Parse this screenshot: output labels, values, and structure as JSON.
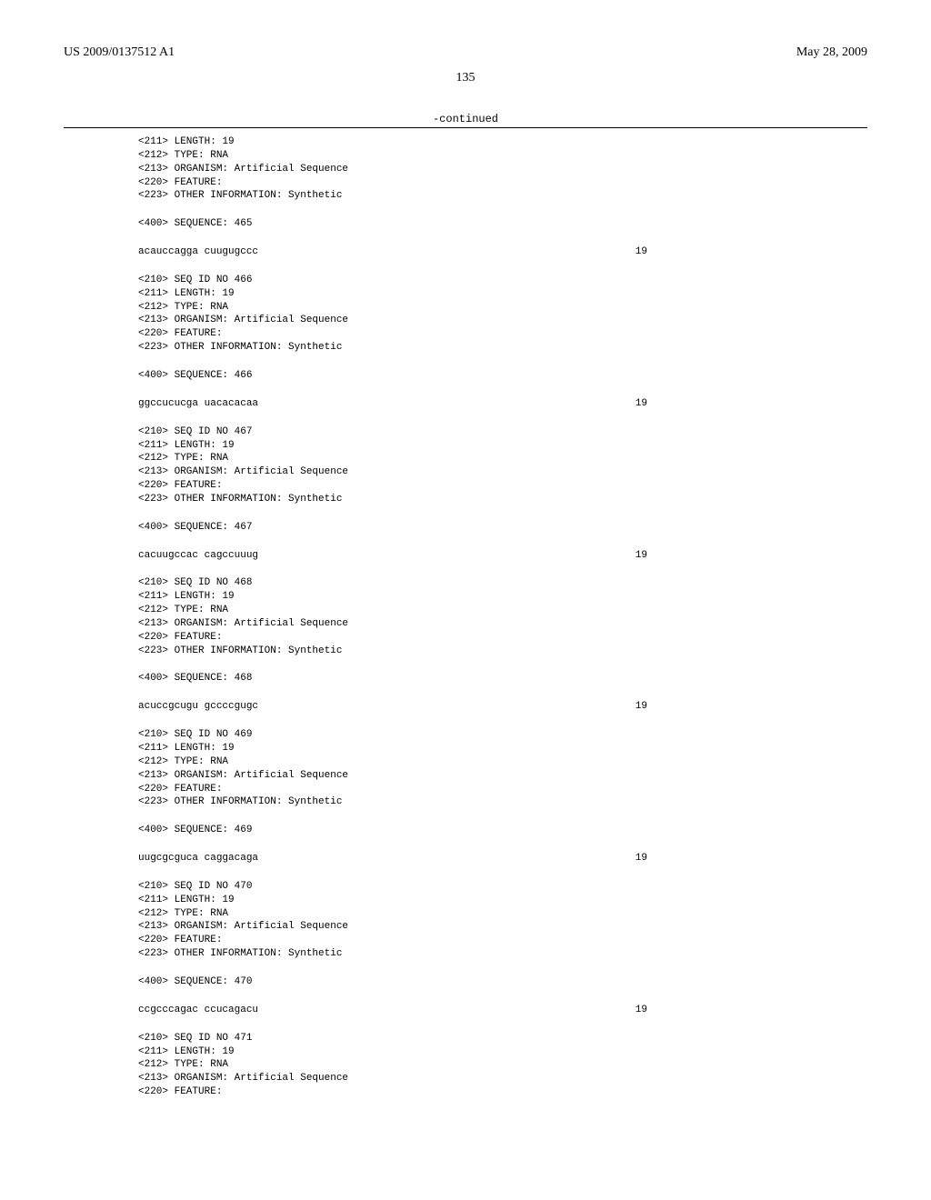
{
  "header": {
    "left": "US 2009/0137512 A1",
    "right": "May 28, 2009"
  },
  "page_number": "135",
  "continued_label": "-continued",
  "blocks": [
    {
      "lines": [
        "<211> LENGTH: 19",
        "<212> TYPE: RNA",
        "<213> ORGANISM: Artificial Sequence",
        "<220> FEATURE:",
        "<223> OTHER INFORMATION: Synthetic"
      ]
    },
    {
      "lines": [
        "<400> SEQUENCE: 465"
      ]
    },
    {
      "seq": "acauccagga cuugugccc",
      "num": "19"
    },
    {
      "lines": [
        "<210> SEQ ID NO 466",
        "<211> LENGTH: 19",
        "<212> TYPE: RNA",
        "<213> ORGANISM: Artificial Sequence",
        "<220> FEATURE:",
        "<223> OTHER INFORMATION: Synthetic"
      ]
    },
    {
      "lines": [
        "<400> SEQUENCE: 466"
      ]
    },
    {
      "seq": "ggccucucga uacacacaa",
      "num": "19"
    },
    {
      "lines": [
        "<210> SEQ ID NO 467",
        "<211> LENGTH: 19",
        "<212> TYPE: RNA",
        "<213> ORGANISM: Artificial Sequence",
        "<220> FEATURE:",
        "<223> OTHER INFORMATION: Synthetic"
      ]
    },
    {
      "lines": [
        "<400> SEQUENCE: 467"
      ]
    },
    {
      "seq": "cacuugccac cagccuuug",
      "num": "19"
    },
    {
      "lines": [
        "<210> SEQ ID NO 468",
        "<211> LENGTH: 19",
        "<212> TYPE: RNA",
        "<213> ORGANISM: Artificial Sequence",
        "<220> FEATURE:",
        "<223> OTHER INFORMATION: Synthetic"
      ]
    },
    {
      "lines": [
        "<400> SEQUENCE: 468"
      ]
    },
    {
      "seq": "acuccgcugu gccccgugc",
      "num": "19"
    },
    {
      "lines": [
        "<210> SEQ ID NO 469",
        "<211> LENGTH: 19",
        "<212> TYPE: RNA",
        "<213> ORGANISM: Artificial Sequence",
        "<220> FEATURE:",
        "<223> OTHER INFORMATION: Synthetic"
      ]
    },
    {
      "lines": [
        "<400> SEQUENCE: 469"
      ]
    },
    {
      "seq": "uugcgcguca caggacaga",
      "num": "19"
    },
    {
      "lines": [
        "<210> SEQ ID NO 470",
        "<211> LENGTH: 19",
        "<212> TYPE: RNA",
        "<213> ORGANISM: Artificial Sequence",
        "<220> FEATURE:",
        "<223> OTHER INFORMATION: Synthetic"
      ]
    },
    {
      "lines": [
        "<400> SEQUENCE: 470"
      ]
    },
    {
      "seq": "ccgcccagac ccucagacu",
      "num": "19"
    },
    {
      "lines": [
        "<210> SEQ ID NO 471",
        "<211> LENGTH: 19",
        "<212> TYPE: RNA",
        "<213> ORGANISM: Artificial Sequence",
        "<220> FEATURE:"
      ]
    }
  ]
}
